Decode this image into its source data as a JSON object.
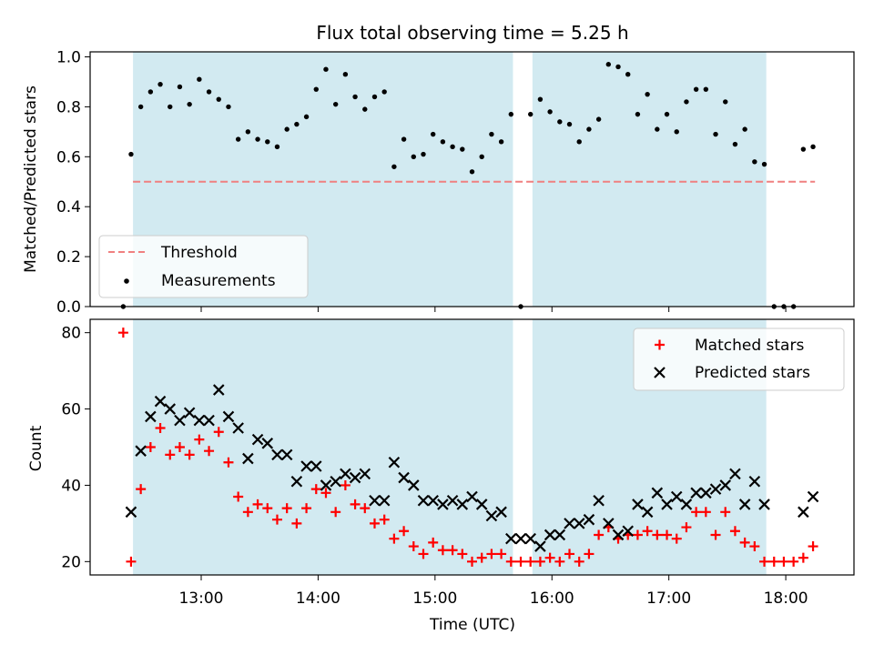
{
  "chart_data": [
    {
      "type": "scatter",
      "title": "Flux total observing time = 5.25 h",
      "ylabel": "Matched/Predicted stars",
      "xlabel": "",
      "xlim": [
        "12:03",
        "18:35"
      ],
      "ylim": [
        0,
        1.02
      ],
      "xticks": [
        "13:00",
        "14:00",
        "15:00",
        "16:00",
        "17:00",
        "18:00"
      ],
      "yticks": [
        0.0,
        0.2,
        0.4,
        0.6,
        0.8,
        1.0
      ],
      "ytick_labels": [
        "0.0",
        "0.2",
        "0.4",
        "0.6",
        "0.8",
        "1.0"
      ],
      "grid": false,
      "legend_position": "lower-left",
      "shaded_intervals": [
        [
          "12:25",
          "15:40"
        ],
        [
          "15:50",
          "17:50"
        ]
      ],
      "shade_color": "#add8e6",
      "threshold": {
        "name": "Threshold",
        "value": 0.5,
        "x": [
          "12:25",
          "18:15"
        ],
        "color": "#f08080"
      },
      "series": [
        {
          "name": "Measurements",
          "color": "#000000",
          "points": [
            [
              "12:20",
              0.0
            ],
            [
              "12:24",
              0.61
            ],
            [
              "12:29",
              0.8
            ],
            [
              "12:34",
              0.86
            ],
            [
              "12:39",
              0.89
            ],
            [
              "12:44",
              0.8
            ],
            [
              "12:49",
              0.88
            ],
            [
              "12:54",
              0.81
            ],
            [
              "12:59",
              0.91
            ],
            [
              "13:04",
              0.86
            ],
            [
              "13:09",
              0.83
            ],
            [
              "13:14",
              0.8
            ],
            [
              "13:19",
              0.67
            ],
            [
              "13:24",
              0.7
            ],
            [
              "13:29",
              0.67
            ],
            [
              "13:34",
              0.66
            ],
            [
              "13:39",
              0.64
            ],
            [
              "13:44",
              0.71
            ],
            [
              "13:49",
              0.73
            ],
            [
              "13:54",
              0.76
            ],
            [
              "13:59",
              0.87
            ],
            [
              "14:04",
              0.95
            ],
            [
              "14:09",
              0.81
            ],
            [
              "14:14",
              0.93
            ],
            [
              "14:19",
              0.84
            ],
            [
              "14:24",
              0.79
            ],
            [
              "14:29",
              0.84
            ],
            [
              "14:34",
              0.86
            ],
            [
              "14:39",
              0.56
            ],
            [
              "14:44",
              0.67
            ],
            [
              "14:49",
              0.6
            ],
            [
              "14:54",
              0.61
            ],
            [
              "14:59",
              0.69
            ],
            [
              "15:04",
              0.66
            ],
            [
              "15:09",
              0.64
            ],
            [
              "15:14",
              0.63
            ],
            [
              "15:19",
              0.54
            ],
            [
              "15:24",
              0.6
            ],
            [
              "15:29",
              0.69
            ],
            [
              "15:34",
              0.66
            ],
            [
              "15:39",
              0.77
            ],
            [
              "15:44",
              0.0
            ],
            [
              "15:49",
              0.77
            ],
            [
              "15:54",
              0.83
            ],
            [
              "15:59",
              0.78
            ],
            [
              "16:04",
              0.74
            ],
            [
              "16:09",
              0.73
            ],
            [
              "16:14",
              0.66
            ],
            [
              "16:19",
              0.71
            ],
            [
              "16:24",
              0.75
            ],
            [
              "16:29",
              0.97
            ],
            [
              "16:34",
              0.96
            ],
            [
              "16:39",
              0.93
            ],
            [
              "16:44",
              0.77
            ],
            [
              "16:49",
              0.85
            ],
            [
              "16:54",
              0.71
            ],
            [
              "16:59",
              0.77
            ],
            [
              "17:04",
              0.7
            ],
            [
              "17:09",
              0.82
            ],
            [
              "17:14",
              0.87
            ],
            [
              "17:19",
              0.87
            ],
            [
              "17:24",
              0.69
            ],
            [
              "17:29",
              0.82
            ],
            [
              "17:34",
              0.65
            ],
            [
              "17:39",
              0.71
            ],
            [
              "17:44",
              0.58
            ],
            [
              "17:49",
              0.57
            ],
            [
              "17:54",
              0.0
            ],
            [
              "17:59",
              0.0
            ],
            [
              "18:04",
              0.0
            ],
            [
              "18:09",
              0.63
            ],
            [
              "18:14",
              0.64
            ]
          ]
        }
      ]
    },
    {
      "type": "scatter",
      "title": "",
      "xlabel": "Time (UTC)",
      "ylabel": "Count",
      "xlim": [
        "12:03",
        "18:35"
      ],
      "ylim": [
        16.5,
        83.5
      ],
      "xticks": [
        "13:00",
        "14:00",
        "15:00",
        "16:00",
        "17:00",
        "18:00"
      ],
      "yticks": [
        20,
        40,
        60,
        80
      ],
      "ytick_labels": [
        "20",
        "40",
        "60",
        "80"
      ],
      "grid": false,
      "legend_position": "upper-right",
      "shaded_intervals": [
        [
          "12:25",
          "15:40"
        ],
        [
          "15:50",
          "17:50"
        ]
      ],
      "shade_color": "#add8e6",
      "x": [
        "12:20",
        "12:24",
        "12:29",
        "12:34",
        "12:39",
        "12:44",
        "12:49",
        "12:54",
        "12:59",
        "13:04",
        "13:09",
        "13:14",
        "13:19",
        "13:24",
        "13:29",
        "13:34",
        "13:39",
        "13:44",
        "13:49",
        "13:54",
        "13:59",
        "14:04",
        "14:09",
        "14:14",
        "14:19",
        "14:24",
        "14:29",
        "14:34",
        "14:39",
        "14:44",
        "14:49",
        "14:54",
        "14:59",
        "15:04",
        "15:09",
        "15:14",
        "15:19",
        "15:24",
        "15:29",
        "15:34",
        "15:39",
        "15:44",
        "15:49",
        "15:54",
        "15:59",
        "16:04",
        "16:09",
        "16:14",
        "16:19",
        "16:24",
        "16:29",
        "16:34",
        "16:39",
        "16:44",
        "16:49",
        "16:54",
        "16:59",
        "17:04",
        "17:09",
        "17:14",
        "17:19",
        "17:24",
        "17:29",
        "17:34",
        "17:39",
        "17:44",
        "17:49",
        "17:54",
        "17:59",
        "18:04",
        "18:09",
        "18:14"
      ],
      "series": [
        {
          "name": "Matched stars",
          "marker": "+",
          "color": "#ff0000",
          "values": [
            80,
            20,
            39,
            50,
            55,
            48,
            50,
            48,
            52,
            49,
            54,
            46,
            37,
            33,
            35,
            34,
            31,
            34,
            30,
            34,
            39,
            38,
            33,
            40,
            35,
            34,
            30,
            31,
            26,
            28,
            24,
            22,
            25,
            23,
            23,
            22,
            20,
            21,
            22,
            22,
            20,
            20,
            20,
            20,
            21,
            20,
            22,
            20,
            22,
            27,
            29,
            26,
            27,
            27,
            28,
            27,
            27,
            26,
            29,
            33,
            33,
            27,
            33,
            28,
            25,
            24,
            20,
            20,
            20,
            20,
            21,
            24
          ]
        },
        {
          "name": "Predicted stars",
          "marker": "x",
          "color": "#000000",
          "values": [
            null,
            33,
            49,
            58,
            62,
            60,
            57,
            59,
            57,
            57,
            65,
            58,
            55,
            47,
            52,
            51,
            48,
            48,
            41,
            45,
            45,
            40,
            41,
            43,
            42,
            43,
            36,
            36,
            46,
            42,
            40,
            36,
            36,
            35,
            36,
            35,
            37,
            35,
            32,
            33,
            26,
            26,
            26,
            24,
            27,
            27,
            30,
            30,
            31,
            36,
            30,
            27,
            28,
            35,
            33,
            38,
            35,
            37,
            35,
            38,
            38,
            39,
            40,
            43,
            35,
            41,
            35,
            null,
            null,
            null,
            33,
            37
          ]
        }
      ]
    }
  ]
}
